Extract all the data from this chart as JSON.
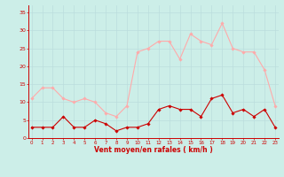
{
  "hours": [
    0,
    1,
    2,
    3,
    4,
    5,
    6,
    7,
    8,
    9,
    10,
    11,
    12,
    13,
    14,
    15,
    16,
    17,
    18,
    19,
    20,
    21,
    22,
    23
  ],
  "mean_values": [
    3,
    3,
    3,
    6,
    3,
    3,
    5,
    4,
    2,
    3,
    3,
    4,
    8,
    9,
    8,
    8,
    6,
    11,
    12,
    7,
    8,
    6,
    8,
    3
  ],
  "gust_values": [
    11,
    14,
    14,
    11,
    10,
    11,
    10,
    7,
    6,
    9,
    24,
    25,
    27,
    27,
    22,
    29,
    27,
    26,
    32,
    25,
    24,
    24,
    19,
    9
  ],
  "bg_color": "#cceee8",
  "grid_color": "#bbdddd",
  "line_color_avg": "#cc0000",
  "line_color_gust": "#ffaaaa",
  "marker_color_avg": "#cc0000",
  "marker_color_gust": "#ffaaaa",
  "xlabel": "Vent moyen/en rafales ( km/h )",
  "xlabel_color": "#cc0000",
  "tick_color": "#cc0000",
  "yticks": [
    0,
    5,
    10,
    15,
    20,
    25,
    30,
    35
  ],
  "ylim": [
    0,
    37
  ],
  "xlim": [
    -0.3,
    23.3
  ]
}
